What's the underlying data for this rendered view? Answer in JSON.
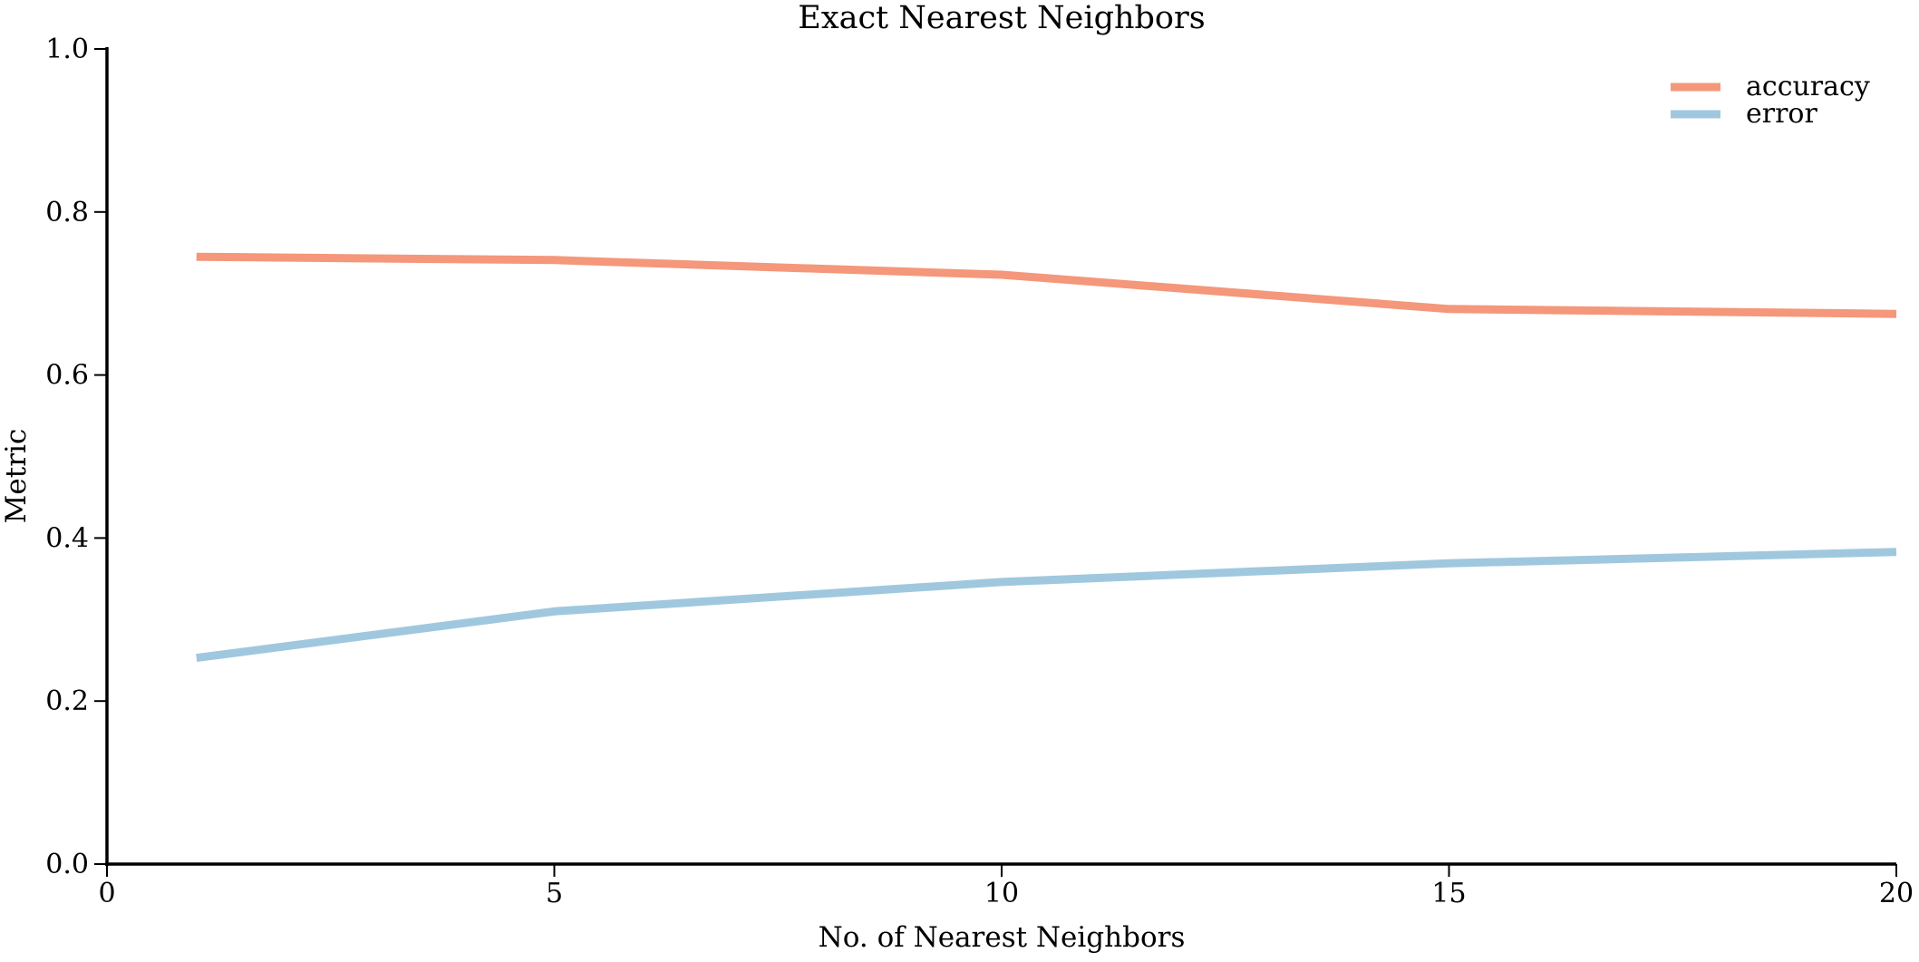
{
  "chart_data": {
    "type": "line",
    "title": "Exact Nearest Neighbors",
    "xlabel": "No. of Nearest Neighbors",
    "ylabel": "Metric",
    "xlim": [
      0,
      20
    ],
    "ylim": [
      0.0,
      1.0
    ],
    "xticks": [
      0,
      5,
      10,
      15,
      20
    ],
    "yticks": [
      0.0,
      0.2,
      0.4,
      0.6,
      0.8,
      1.0
    ],
    "xtick_labels": [
      "0",
      "5",
      "10",
      "15",
      "20"
    ],
    "ytick_labels": [
      "0.0",
      "0.2",
      "0.4",
      "0.6",
      "0.8",
      "1.0"
    ],
    "x": [
      1,
      5,
      10,
      15,
      20
    ],
    "series": [
      {
        "name": "accuracy",
        "color": "#f4977a",
        "values": [
          0.745,
          0.741,
          0.723,
          0.681,
          0.675
        ]
      },
      {
        "name": "error",
        "color": "#9fc8df",
        "values": [
          0.253,
          0.31,
          0.346,
          0.369,
          0.383
        ]
      }
    ],
    "legend_position": "top-right",
    "grid": false
  }
}
